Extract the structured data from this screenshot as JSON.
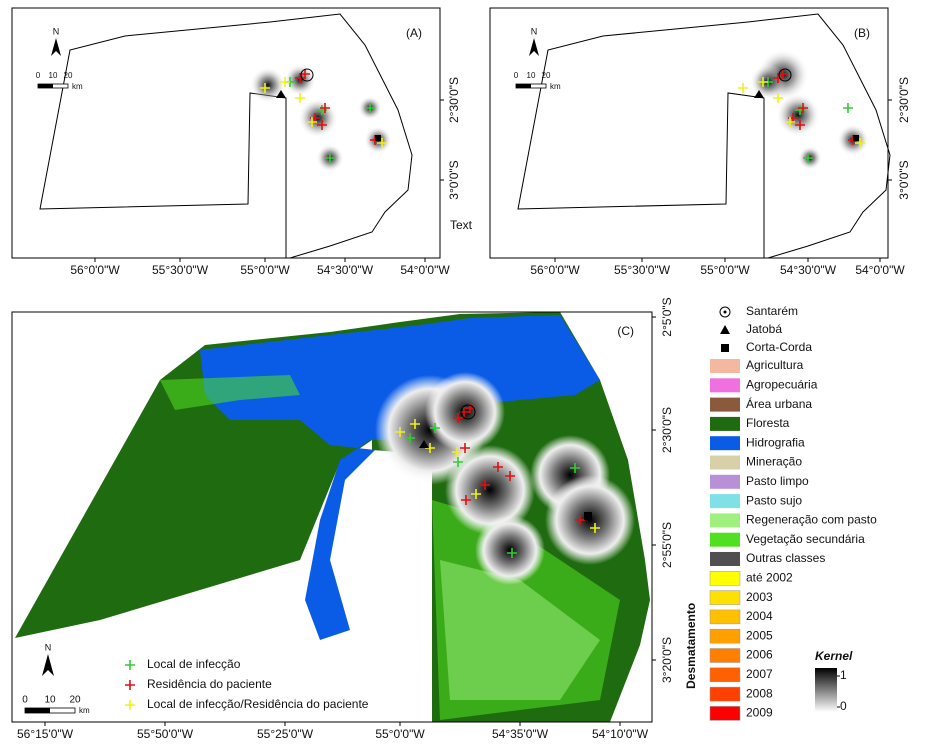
{
  "panels": [
    {
      "label": "(A)",
      "north": "N",
      "scale": [
        "0",
        "10",
        "20"
      ],
      "scale_unit": "km",
      "x_labels": [
        "56°0'0\"W",
        "55°30'0\"W",
        "55°0'0\"W",
        "54°30'0\"W",
        "54°0'0\"W"
      ],
      "y_labels": [
        "2°30'0\"S",
        "3°0'0\"S"
      ],
      "note": "Text"
    },
    {
      "label": "(B)",
      "north": "N",
      "scale": [
        "0",
        "10",
        "20"
      ],
      "scale_unit": "km",
      "x_labels": [
        "56°0'0\"W",
        "55°30'0\"W",
        "55°0'0\"W",
        "54°30'0\"W",
        "54°0'0\"W"
      ],
      "y_labels": [
        "2°30'0\"S",
        "3°0'0\"S"
      ]
    },
    {
      "label": "(C)",
      "north": "N",
      "scale": [
        "0",
        "10",
        "20"
      ],
      "scale_unit": "km",
      "x_labels": [
        "56°15'0\"W",
        "55°50'0\"W",
        "55°25'0\"W",
        "55°0'0\"W",
        "54°35'0\"W",
        "54°10'0\"W"
      ],
      "y_labels": [
        "2°5'0\"S",
        "2°30'0\"S",
        "2°55'0\"S",
        "3°20'0\"S"
      ]
    }
  ],
  "point_legend": [
    {
      "label": "Local de infecção",
      "color": "#33cc33"
    },
    {
      "label": "Residência do paciente",
      "color": "#e01010"
    },
    {
      "label": "Local de infecção/Residência do paciente",
      "color": "#f0f020"
    }
  ],
  "legend": {
    "places": [
      {
        "label": "Santarém",
        "symbol": "circle-dot"
      },
      {
        "label": "Jatobá",
        "symbol": "triangle"
      },
      {
        "label": "Corta-Corda",
        "symbol": "square"
      }
    ],
    "classes": [
      {
        "label": "Agricultura",
        "color": "#f4b8a0"
      },
      {
        "label": "Agropecuária",
        "color": "#f070e0"
      },
      {
        "label": "Área urbana",
        "color": "#8b5a3c"
      },
      {
        "label": "Floresta",
        "color": "#1f6b10"
      },
      {
        "label": "Hidrografia",
        "color": "#0a5ce6"
      },
      {
        "label": "Mineração",
        "color": "#d8d0a8"
      },
      {
        "label": "Pasto limpo",
        "color": "#b890d8"
      },
      {
        "label": "Pasto sujo",
        "color": "#80e0e8"
      },
      {
        "label": "Regeneração com pasto",
        "color": "#a0f080"
      },
      {
        "label": "Vegetação secundária",
        "color": "#50e020"
      },
      {
        "label": "Outras classes",
        "color": "#505050"
      }
    ],
    "deforestation_title": "Desmatamento",
    "years": [
      {
        "label": "até 2002",
        "color": "#ffff00"
      },
      {
        "label": "2003",
        "color": "#ffe000"
      },
      {
        "label": "2004",
        "color": "#ffc000"
      },
      {
        "label": "2005",
        "color": "#ffa000"
      },
      {
        "label": "2006",
        "color": "#ff8000"
      },
      {
        "label": "2007",
        "color": "#ff6000"
      },
      {
        "label": "2008",
        "color": "#ff4000"
      },
      {
        "label": "2009",
        "color": "#ff0000"
      }
    ],
    "kernel": {
      "title": "Kernel",
      "max": 1,
      "min": 0
    }
  }
}
